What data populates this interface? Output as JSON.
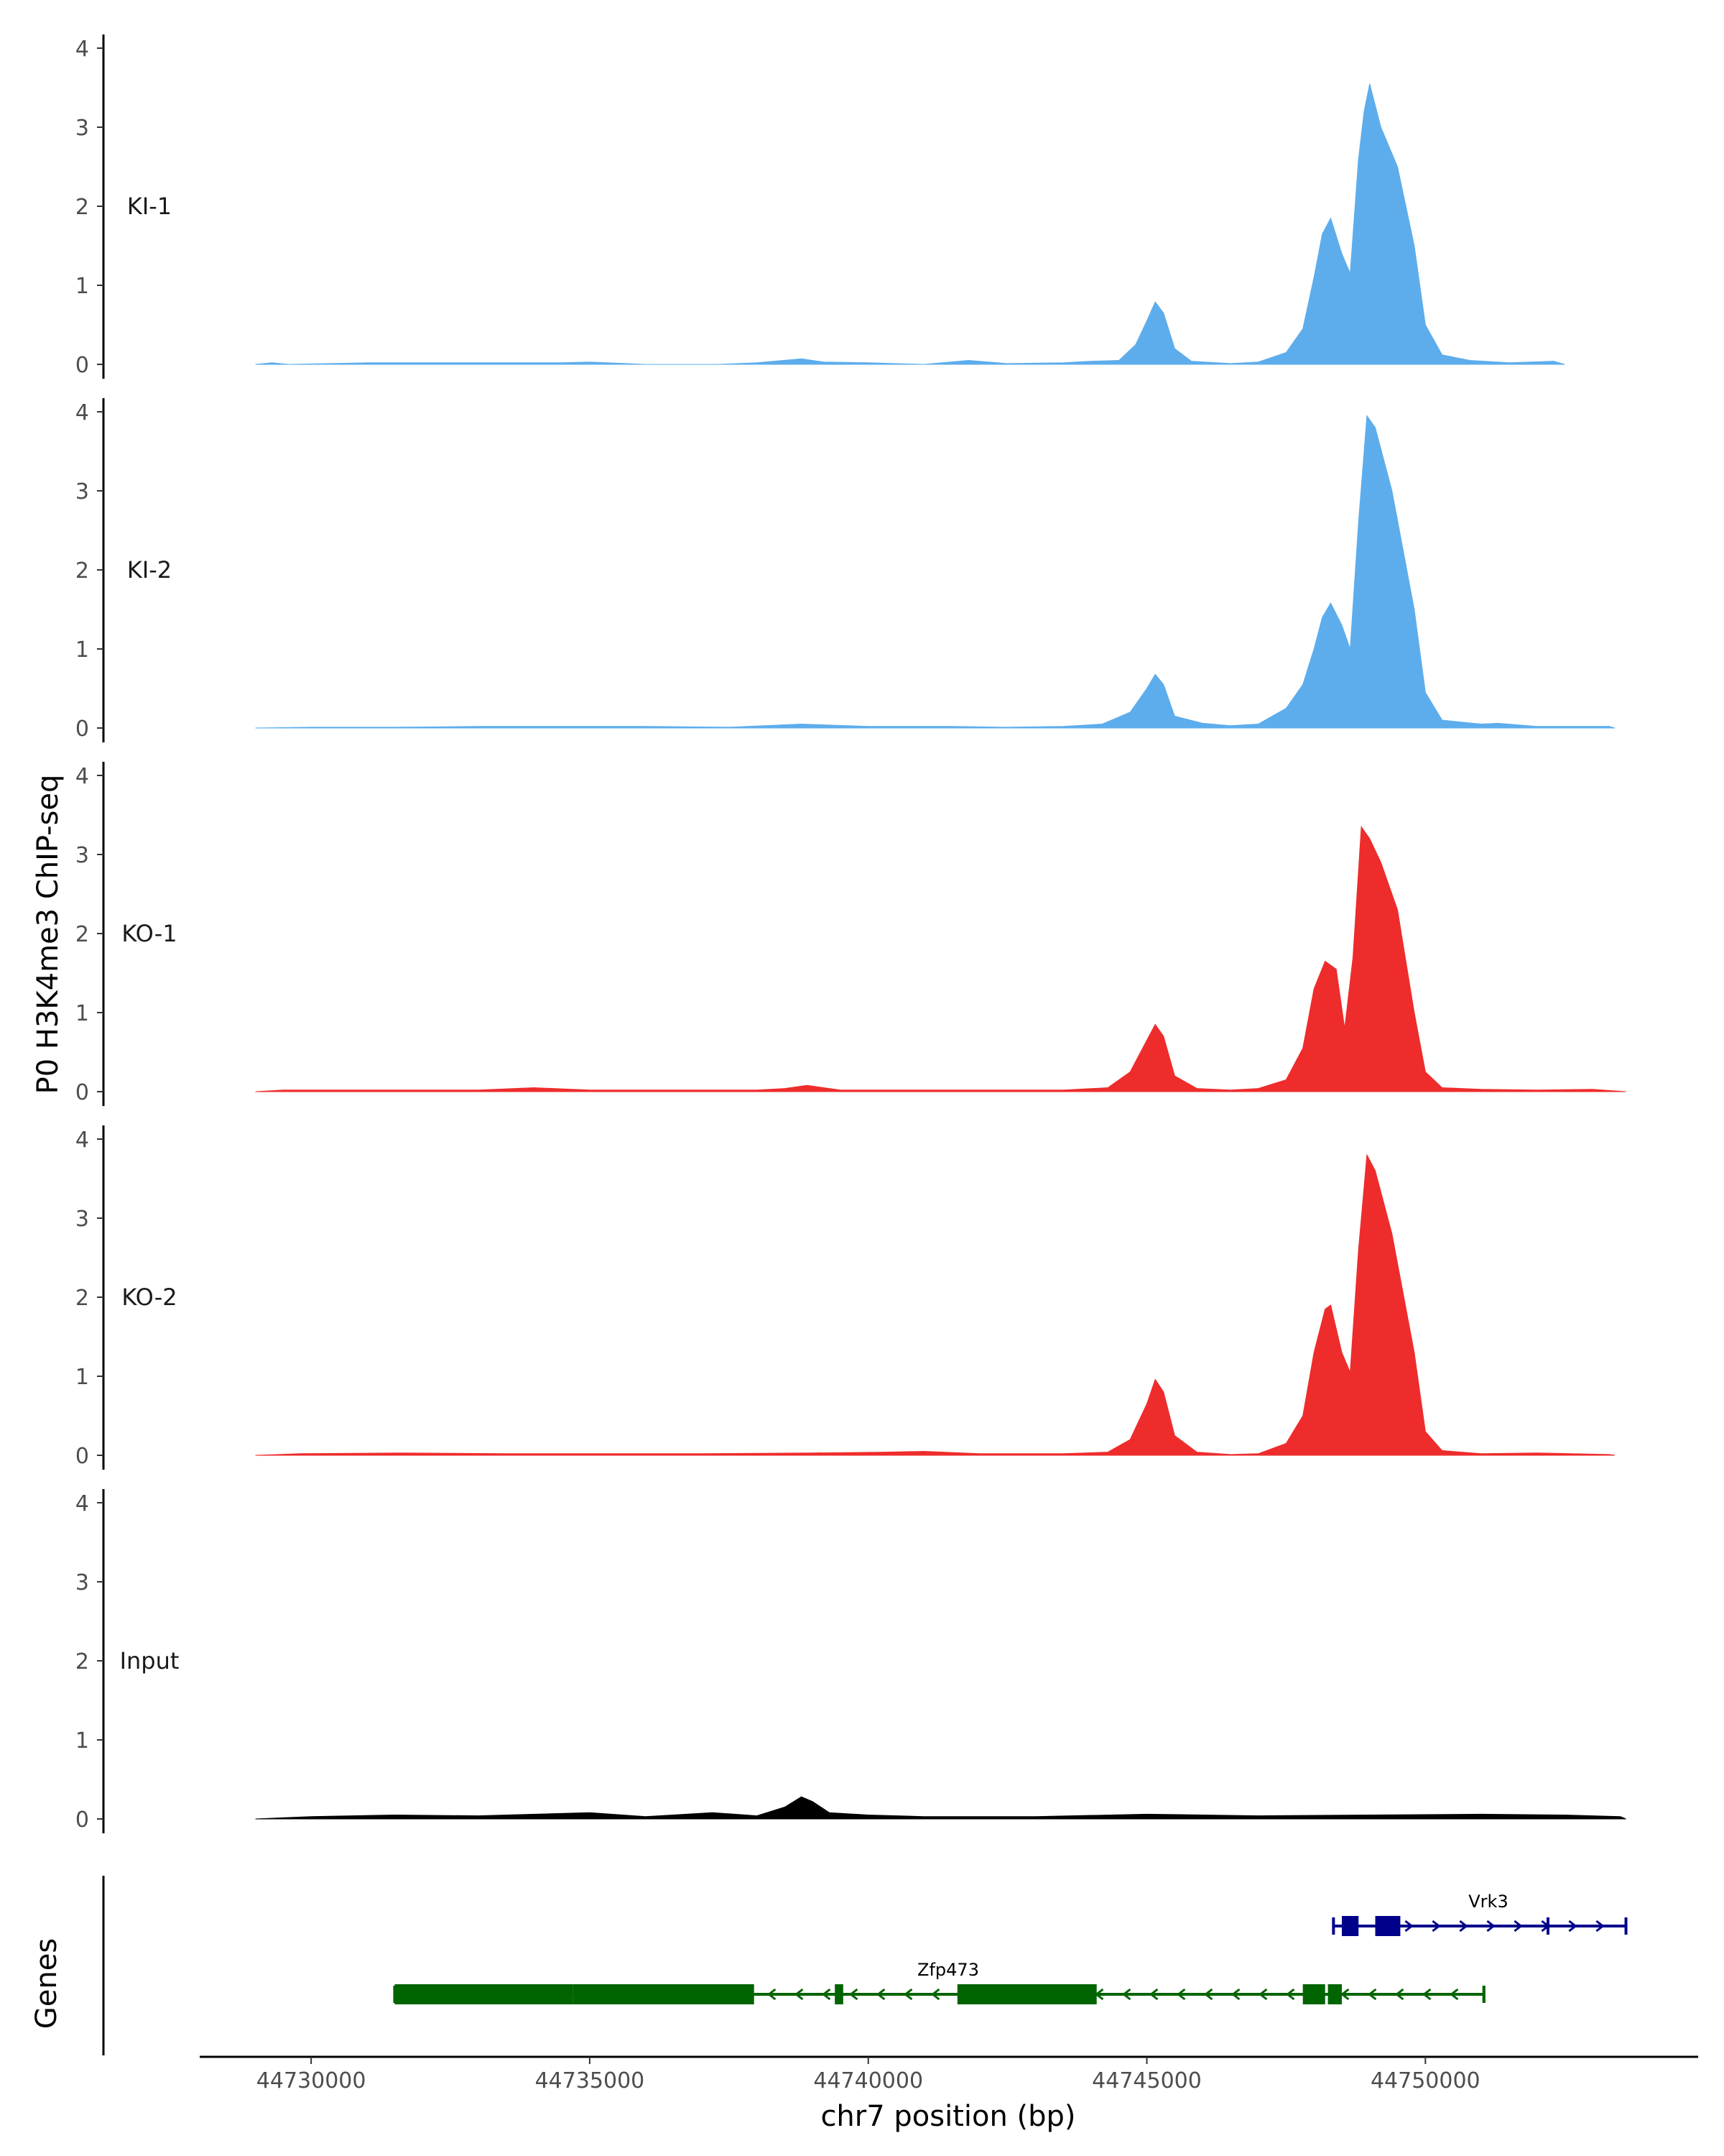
{
  "chart_data": {
    "type": "area",
    "ylabel": "P0 H3K4me3 ChIP-seq",
    "xlabel": "chr7 position (bp)",
    "xlim": [
      44728000,
      44755000
    ],
    "ylim": [
      0,
      4.2
    ],
    "y_ticks": [
      0,
      1,
      2,
      3,
      4
    ],
    "x_ticks": [
      44730000,
      44735000,
      44740000,
      44745000,
      44750000
    ],
    "x_tick_labels": [
      "44730000",
      "44735000",
      "44740000",
      "44745000",
      "44750000"
    ],
    "tracks": [
      {
        "name": "KI-1",
        "color": "#5DADEC",
        "points": [
          [
            44729000,
            0
          ],
          [
            44729300,
            0.02
          ],
          [
            44729600,
            0
          ],
          [
            44731000,
            0.02
          ],
          [
            44732000,
            0.02
          ],
          [
            44733000,
            0.02
          ],
          [
            44734500,
            0.02
          ],
          [
            44735000,
            0.03
          ],
          [
            44736000,
            0
          ],
          [
            44737300,
            0
          ],
          [
            44738000,
            0.02
          ],
          [
            44738800,
            0.07
          ],
          [
            44739200,
            0.03
          ],
          [
            44740000,
            0.02
          ],
          [
            44741000,
            0
          ],
          [
            44741800,
            0.05
          ],
          [
            44742500,
            0.01
          ],
          [
            44743500,
            0.02
          ],
          [
            44744000,
            0.04
          ],
          [
            44744500,
            0.05
          ],
          [
            44744800,
            0.25
          ],
          [
            44745000,
            0.55
          ],
          [
            44745150,
            0.79
          ],
          [
            44745300,
            0.65
          ],
          [
            44745500,
            0.2
          ],
          [
            44745800,
            0.04
          ],
          [
            44746500,
            0.01
          ],
          [
            44747000,
            0.03
          ],
          [
            44747500,
            0.15
          ],
          [
            44747800,
            0.45
          ],
          [
            44748000,
            1.1
          ],
          [
            44748150,
            1.65
          ],
          [
            44748300,
            1.85
          ],
          [
            44748500,
            1.4
          ],
          [
            44748650,
            1.15
          ],
          [
            44748800,
            2.6
          ],
          [
            44748900,
            3.2
          ],
          [
            44749000,
            3.55
          ],
          [
            44749200,
            3.0
          ],
          [
            44749500,
            2.5
          ],
          [
            44749800,
            1.5
          ],
          [
            44750000,
            0.5
          ],
          [
            44750300,
            0.12
          ],
          [
            44750800,
            0.05
          ],
          [
            44751500,
            0.02
          ],
          [
            44752300,
            0.04
          ],
          [
            44752500,
            0
          ]
        ]
      },
      {
        "name": "KI-2",
        "color": "#5DADEC",
        "points": [
          [
            44729000,
            0
          ],
          [
            44730000,
            0.01
          ],
          [
            44731500,
            0.01
          ],
          [
            44733000,
            0.02
          ],
          [
            44734500,
            0.02
          ],
          [
            44736000,
            0.02
          ],
          [
            44737500,
            0.01
          ],
          [
            44738800,
            0.05
          ],
          [
            44740000,
            0.02
          ],
          [
            44741500,
            0.02
          ],
          [
            44742500,
            0.01
          ],
          [
            44743500,
            0.02
          ],
          [
            44744200,
            0.05
          ],
          [
            44744700,
            0.2
          ],
          [
            44745000,
            0.5
          ],
          [
            44745150,
            0.68
          ],
          [
            44745300,
            0.55
          ],
          [
            44745500,
            0.15
          ],
          [
            44746000,
            0.06
          ],
          [
            44746500,
            0.03
          ],
          [
            44747000,
            0.05
          ],
          [
            44747500,
            0.25
          ],
          [
            44747800,
            0.55
          ],
          [
            44748000,
            1.0
          ],
          [
            44748150,
            1.4
          ],
          [
            44748300,
            1.58
          ],
          [
            44748500,
            1.3
          ],
          [
            44748650,
            1.0
          ],
          [
            44748800,
            2.6
          ],
          [
            44748950,
            3.95
          ],
          [
            44749100,
            3.8
          ],
          [
            44749400,
            3.0
          ],
          [
            44749800,
            1.5
          ],
          [
            44750000,
            0.45
          ],
          [
            44750300,
            0.1
          ],
          [
            44751000,
            0.05
          ],
          [
            44751300,
            0.06
          ],
          [
            44752000,
            0.02
          ],
          [
            44753300,
            0.02
          ],
          [
            44753400,
            0
          ]
        ]
      },
      {
        "name": "KO-1",
        "color": "#EE2C2C",
        "points": [
          [
            44729000,
            0
          ],
          [
            44729500,
            0.02
          ],
          [
            44731000,
            0.02
          ],
          [
            44732000,
            0.02
          ],
          [
            44733000,
            0.02
          ],
          [
            44734000,
            0.05
          ],
          [
            44735000,
            0.02
          ],
          [
            44736500,
            0.02
          ],
          [
            44738000,
            0.02
          ],
          [
            44738500,
            0.04
          ],
          [
            44738900,
            0.08
          ],
          [
            44739500,
            0.02
          ],
          [
            44740500,
            0.02
          ],
          [
            44741500,
            0.02
          ],
          [
            44742500,
            0.02
          ],
          [
            44743500,
            0.02
          ],
          [
            44744300,
            0.05
          ],
          [
            44744700,
            0.25
          ],
          [
            44745000,
            0.65
          ],
          [
            44745150,
            0.85
          ],
          [
            44745300,
            0.7
          ],
          [
            44745500,
            0.2
          ],
          [
            44745900,
            0.04
          ],
          [
            44746500,
            0.02
          ],
          [
            44747000,
            0.04
          ],
          [
            44747500,
            0.15
          ],
          [
            44747800,
            0.55
          ],
          [
            44748000,
            1.3
          ],
          [
            44748200,
            1.65
          ],
          [
            44748400,
            1.55
          ],
          [
            44748550,
            0.8
          ],
          [
            44748700,
            1.7
          ],
          [
            44748850,
            3.35
          ],
          [
            44749000,
            3.2
          ],
          [
            44749200,
            2.9
          ],
          [
            44749500,
            2.3
          ],
          [
            44749800,
            1.0
          ],
          [
            44750000,
            0.25
          ],
          [
            44750300,
            0.05
          ],
          [
            44751000,
            0.03
          ],
          [
            44752000,
            0.02
          ],
          [
            44753000,
            0.03
          ],
          [
            44753600,
            0
          ]
        ]
      },
      {
        "name": "KO-2",
        "color": "#EE2C2C",
        "points": [
          [
            44729000,
            0
          ],
          [
            44729800,
            0.02
          ],
          [
            44731600,
            0.03
          ],
          [
            44733500,
            0.02
          ],
          [
            44735000,
            0.02
          ],
          [
            44737000,
            0.02
          ],
          [
            44739000,
            0.03
          ],
          [
            44740300,
            0.04
          ],
          [
            44741000,
            0.05
          ],
          [
            44742000,
            0.02
          ],
          [
            44743500,
            0.02
          ],
          [
            44744300,
            0.04
          ],
          [
            44744700,
            0.2
          ],
          [
            44745000,
            0.65
          ],
          [
            44745150,
            0.96
          ],
          [
            44745300,
            0.8
          ],
          [
            44745500,
            0.25
          ],
          [
            44745900,
            0.04
          ],
          [
            44746500,
            0.01
          ],
          [
            44747000,
            0.02
          ],
          [
            44747500,
            0.15
          ],
          [
            44747800,
            0.5
          ],
          [
            44748000,
            1.3
          ],
          [
            44748200,
            1.85
          ],
          [
            44748300,
            1.9
          ],
          [
            44748500,
            1.3
          ],
          [
            44748650,
            1.05
          ],
          [
            44748800,
            2.6
          ],
          [
            44748950,
            3.8
          ],
          [
            44749100,
            3.6
          ],
          [
            44749400,
            2.8
          ],
          [
            44749800,
            1.3
          ],
          [
            44750000,
            0.3
          ],
          [
            44750300,
            0.06
          ],
          [
            44751000,
            0.02
          ],
          [
            44752000,
            0.03
          ],
          [
            44753300,
            0.01
          ],
          [
            44753400,
            0
          ]
        ]
      },
      {
        "name": "Input",
        "color": "#000000",
        "points": [
          [
            44729000,
            0
          ],
          [
            44730000,
            0.03
          ],
          [
            44731500,
            0.05
          ],
          [
            44733000,
            0.04
          ],
          [
            44735000,
            0.08
          ],
          [
            44736000,
            0.03
          ],
          [
            44737200,
            0.08
          ],
          [
            44738000,
            0.04
          ],
          [
            44738500,
            0.15
          ],
          [
            44738800,
            0.28
          ],
          [
            44739000,
            0.22
          ],
          [
            44739300,
            0.08
          ],
          [
            44740000,
            0.05
          ],
          [
            44741000,
            0.03
          ],
          [
            44743000,
            0.03
          ],
          [
            44745000,
            0.06
          ],
          [
            44747000,
            0.04
          ],
          [
            44749000,
            0.05
          ],
          [
            44751000,
            0.06
          ],
          [
            44752500,
            0.05
          ],
          [
            44753500,
            0.03
          ],
          [
            44753600,
            0
          ]
        ]
      }
    ],
    "genes": [
      {
        "name": "Vrk3",
        "strand": "+",
        "color": "#00008B",
        "row": 0,
        "start": 44748350,
        "end": 44753600,
        "exons": [
          [
            44748500,
            44748800
          ],
          [
            44749100,
            44749550
          ]
        ],
        "utr_marks": [
          44752200
        ]
      },
      {
        "name": "Zfp473",
        "strand": "-",
        "color": "#006400",
        "row": 1,
        "start": 44731500,
        "end": 44751050,
        "exons": [
          [
            44731500,
            44734700
          ],
          [
            44734700,
            44737950
          ],
          [
            44739400,
            44739550
          ],
          [
            44741600,
            44744100
          ],
          [
            44747800,
            44748200
          ],
          [
            44748250,
            44748500
          ]
        ],
        "utr_marks": [
          44751050
        ]
      }
    ],
    "genes_label": "Genes"
  }
}
